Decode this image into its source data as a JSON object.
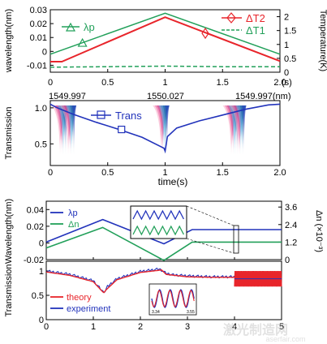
{
  "chart_data": [
    {
      "type": "line",
      "ylabel": "wavelength(nm)",
      "y2label": "Temperature(K)",
      "xunit": "(s)",
      "xlim": [
        0,
        2.0
      ],
      "ylim": [
        -0.015,
        0.03
      ],
      "y2lim": [
        0,
        2.25
      ],
      "xticks": [
        "0",
        "0.5",
        "1",
        "1.5",
        "2.0"
      ],
      "yticks": [
        "0.03",
        "0.02",
        "0.01",
        "0",
        "-0.01"
      ],
      "y2ticks": [
        "2",
        "1.5",
        "1",
        "0.5",
        "0"
      ],
      "legend_left": "λp",
      "legend_right": [
        "ΔT2",
        "ΔT1"
      ],
      "colors": {
        "lp": "#22a05a",
        "dT2": "#e8252b",
        "dT1": "#22a05a"
      },
      "series": [
        {
          "name": "λp",
          "axis": "left",
          "x": [
            0,
            1,
            2
          ],
          "y": [
            -0.002,
            0.0275,
            -0.002
          ]
        },
        {
          "name": "ΔT2",
          "axis": "right",
          "x": [
            0,
            0.1,
            1,
            2
          ],
          "y": [
            0.38,
            0.38,
            1.98,
            0.4
          ]
        },
        {
          "name": "ΔT1",
          "axis": "right",
          "x": [
            0,
            0.5,
            1,
            1.5,
            2
          ],
          "y": [
            0.18,
            0.2,
            0.22,
            0.2,
            0.2
          ]
        }
      ],
      "marker_points": [
        {
          "series": "λp",
          "x": 0.28,
          "y": 0.006
        },
        {
          "series": "ΔT2",
          "x": 1.35,
          "y": 1.4
        }
      ]
    },
    {
      "type": "line",
      "ylabel": "Transmission",
      "xlabel": "time(s)",
      "xlim": [
        0,
        2.0
      ],
      "ylim": [
        0.2,
        1.1
      ],
      "xticks": [
        "0",
        "0.5",
        "1",
        "1.5",
        "2.0"
      ],
      "yticks": [
        "1.0",
        "0.5"
      ],
      "top_wavelength_labels": [
        "1549.997",
        "1550.027",
        "1549.997(nm)"
      ],
      "legend": "Trans",
      "colors": {
        "trans": "#2233bb"
      },
      "series": [
        {
          "name": "Trans",
          "x": [
            0,
            0.06,
            0.2,
            0.4,
            0.6,
            0.8,
            0.99,
            1.0,
            1.02,
            1.1,
            1.3,
            1.5,
            1.7,
            1.9,
            2.0
          ],
          "y": [
            1.05,
            1.0,
            0.91,
            0.8,
            0.7,
            0.59,
            0.44,
            0.4,
            0.6,
            0.72,
            0.82,
            0.9,
            0.98,
            1.04,
            1.05
          ]
        }
      ],
      "dips_x": [
        0.11,
        0.18,
        0.99,
        1.6,
        1.66
      ]
    },
    {
      "type": "line",
      "ylabel": "Wavelength(nm)",
      "y2label": "Δn (×10⁻³)",
      "xlim": [
        0,
        5
      ],
      "ylim": [
        -0.02,
        0.05
      ],
      "y2lim": [
        0,
        4.0
      ],
      "yticks": [
        "0.04",
        "0.02",
        "0",
        "-0.02"
      ],
      "y2ticks": [
        "3.6",
        "2.4",
        "1.2",
        "0"
      ],
      "legend": [
        "λp",
        "Δn"
      ],
      "colors": {
        "lp": "#2233bb",
        "dn": "#22a05a"
      },
      "series": [
        {
          "name": "λp",
          "axis": "left",
          "x": [
            0,
            1.2,
            2.5,
            3.1,
            4,
            5
          ],
          "y": [
            0.001,
            0.028,
            -0.001,
            0.016,
            0.016,
            0.016
          ]
        },
        {
          "name": "Δn",
          "axis": "right",
          "x": [
            0,
            1.2,
            2.5,
            3.1,
            4,
            5
          ],
          "y": [
            0.8,
            2.2,
            -0.05,
            1.2,
            1.2,
            1.2
          ]
        }
      ]
    },
    {
      "type": "line",
      "ylabel": "Transmission",
      "xlim": [
        0,
        5
      ],
      "ylim": [
        0,
        1.2
      ],
      "xticks": [
        "0",
        "1",
        "2",
        "3",
        "4",
        "5"
      ],
      "yticks": [
        "1",
        "0.5",
        "0"
      ],
      "legend": [
        "theory",
        "experiment"
      ],
      "colors": {
        "theory": "#e8252b",
        "experiment": "#2233bb"
      },
      "series": [
        {
          "name": "experiment",
          "x": [
            0,
            0.5,
            1.0,
            1.2,
            1.25,
            1.3,
            1.5,
            2.0,
            2.4,
            2.48,
            2.55,
            2.7,
            3.0,
            3.5,
            4.0
          ],
          "y": [
            1.0,
            0.93,
            0.8,
            0.58,
            0.58,
            0.68,
            0.84,
            0.99,
            1.04,
            1.0,
            0.95,
            0.92,
            0.9,
            0.88,
            0.88
          ]
        },
        {
          "name": "theory",
          "x": [
            0,
            0.5,
            1.0,
            1.22,
            1.28,
            1.5,
            2.0,
            2.45,
            2.55,
            3.0,
            3.5,
            4.0
          ],
          "y": [
            0.98,
            0.91,
            0.78,
            0.55,
            0.62,
            0.82,
            0.97,
            1.02,
            0.93,
            0.88,
            0.87,
            0.87
          ]
        }
      ],
      "inset_ticks": [
        "3.34",
        "3.55"
      ]
    }
  ],
  "watermark": {
    "text": "激光制造网",
    "url": "aserfair.com"
  }
}
